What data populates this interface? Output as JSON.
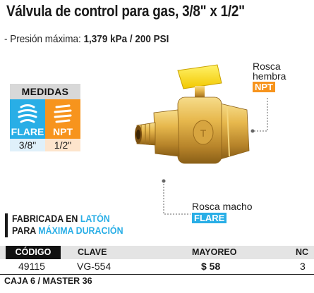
{
  "title": "Válvula de control para gas, 3/8\" x 1/2\"",
  "spec": {
    "prefix": "- Presión máxima: ",
    "value": "1,379 kPa / 200 PSI"
  },
  "medidas": {
    "heading": "MEDIDAS",
    "left_label": "FLARE",
    "right_label": "NPT",
    "left_value": "3/8\"",
    "right_value": "1/2\""
  },
  "callouts": {
    "rosca_hembra_line1": "Rosca",
    "rosca_hembra_line2": "hembra",
    "rosca_hembra_tag": "NPT",
    "rosca_macho_line": "Rosca macho",
    "rosca_macho_tag": "FLARE"
  },
  "fabricada": {
    "line1_a": "FABRICADA EN ",
    "line1_b": "LATÓN",
    "line2_a": "PARA ",
    "line2_b": "MÁXIMA DURACIÓN"
  },
  "table": {
    "headers": [
      "CÓDIGO",
      "CLAVE",
      "MAYOREO",
      "NC"
    ],
    "row": [
      "49115",
      "VG-554",
      "$ 58",
      "3"
    ]
  },
  "caja": "CAJA 6 / MASTER 36",
  "colors": {
    "flare": "#29aee6",
    "npt": "#f7941d",
    "brass": "#d9a83a",
    "handle": "#ffe21a"
  }
}
